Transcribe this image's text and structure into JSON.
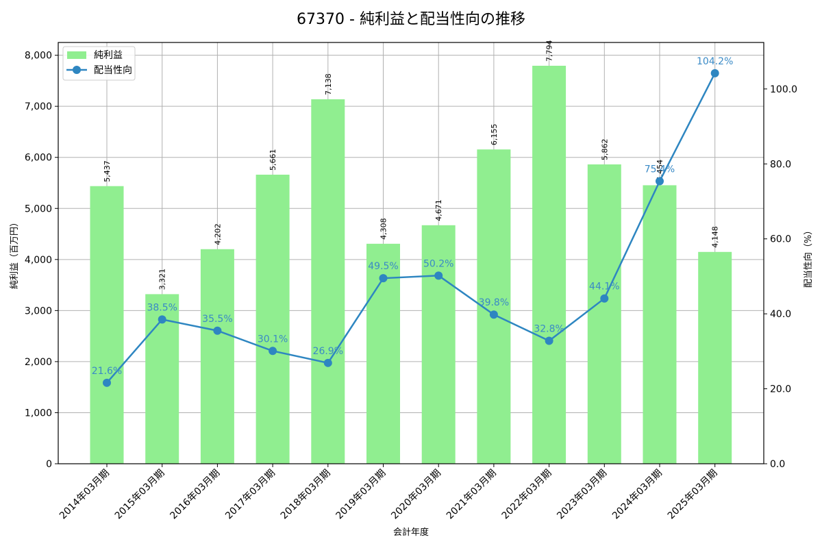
{
  "chart_data": {
    "type": "bar+line",
    "title": "67370 - 純利益と配当性向の推移",
    "xlabel": "会計年度",
    "ylabel_left": "純利益（百万円）",
    "ylabel_right": "配当性向（%）",
    "categories": [
      "2014年03月期",
      "2015年03月期",
      "2016年03月期",
      "2017年03月期",
      "2018年03月期",
      "2019年03月期",
      "2020年03月期",
      "2021年03月期",
      "2022年03月期",
      "2023年03月期",
      "2024年03月期",
      "2025年03月期"
    ],
    "series": [
      {
        "name": "純利益",
        "type": "bar",
        "axis": "left",
        "color": "#90ee90",
        "values": [
          5437,
          3321,
          4202,
          5661,
          7138,
          4308,
          4671,
          6155,
          7794,
          5862,
          5454,
          4148
        ],
        "labels": [
          "5,437",
          "3,321",
          "4,202",
          "5,661",
          "7,138",
          "4,308",
          "4,671",
          "6,155",
          "7,794",
          "5,862",
          "5,454",
          "4,148"
        ]
      },
      {
        "name": "配当性向",
        "type": "line",
        "axis": "right",
        "color": "#2e86c1",
        "values": [
          21.6,
          38.5,
          35.5,
          30.1,
          26.9,
          49.5,
          50.2,
          39.8,
          32.8,
          44.1,
          75.4,
          104.2
        ],
        "labels": [
          "21.6%",
          "38.5%",
          "35.5%",
          "30.1%",
          "26.9%",
          "49.5%",
          "50.2%",
          "39.8%",
          "32.8%",
          "44.1%",
          "75.4%",
          "104.2%"
        ]
      }
    ],
    "ylim_left": [
      0,
      8250
    ],
    "yticks_left": [
      "0",
      "1,000",
      "2,000",
      "3,000",
      "4,000",
      "5,000",
      "6,000",
      "7,000",
      "8,000"
    ],
    "ylim_right": [
      0,
      112.4
    ],
    "yticks_right": [
      "0.0",
      "20.0",
      "40.0",
      "60.0",
      "80.0",
      "100.0"
    ],
    "grid": true,
    "legend": {
      "position": "upper left",
      "entries": [
        "純利益",
        "配当性向"
      ]
    }
  }
}
